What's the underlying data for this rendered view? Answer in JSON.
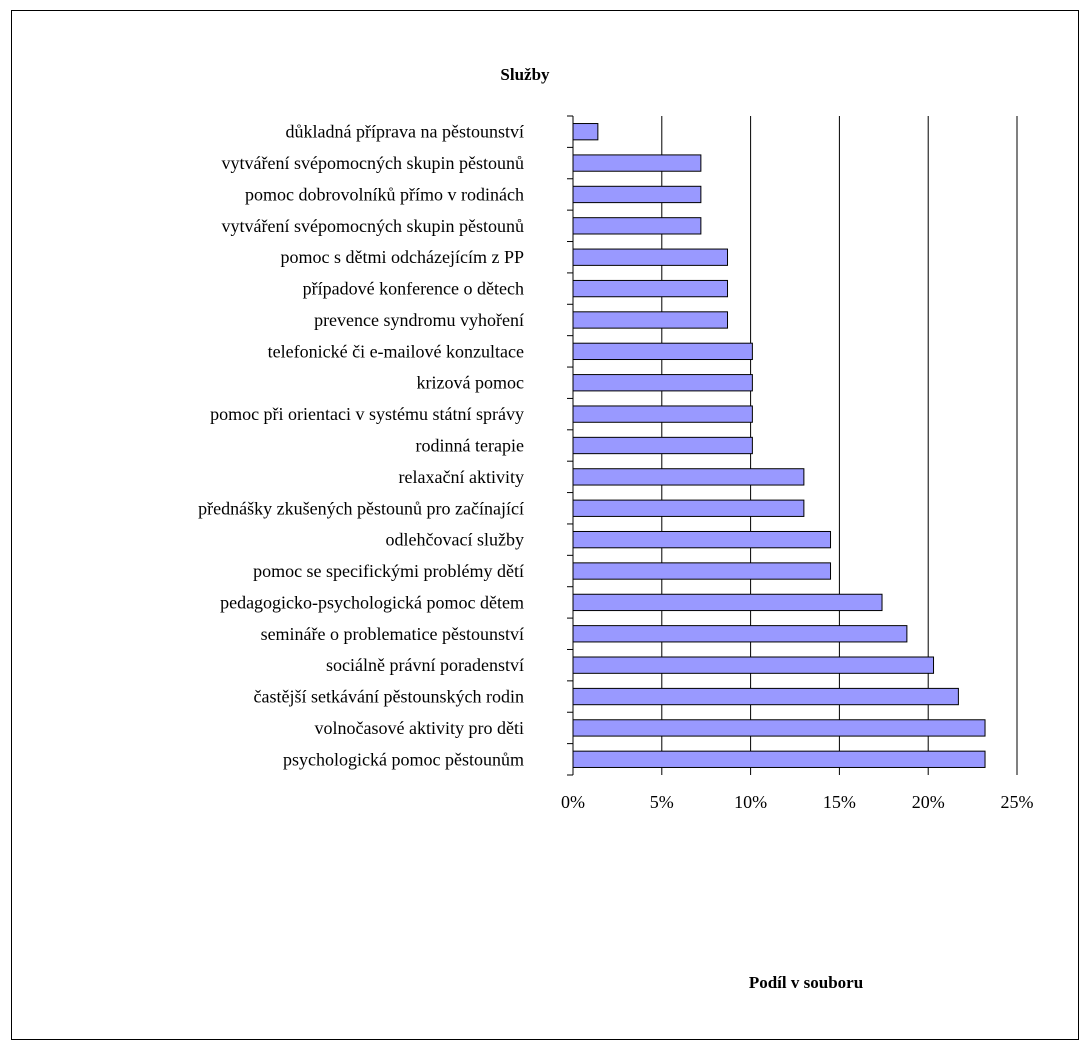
{
  "chart_data": {
    "type": "bar",
    "orientation": "horizontal",
    "title": "Služby",
    "xlabel": "Podíl v souboru",
    "ylabel": "",
    "xlim": [
      0,
      25
    ],
    "x_ticks": [
      "0%",
      "5%",
      "10%",
      "15%",
      "20%",
      "25%"
    ],
    "grid": "vertical",
    "legend": "none",
    "bar_color": "#9999ff",
    "categories": [
      "důkladná příprava na pěstounství",
      "vytváření svépomocných skupin pěstounů",
      "pomoc dobrovolníků přímo v rodinách",
      "vytváření svépomocných skupin pěstounů",
      "pomoc s dětmi odcházejícím z PP",
      "případové konference o dětech",
      "prevence syndromu vyhoření",
      "telefonické či e-mailové konzultace",
      "krizová pomoc",
      "pomoc při orientaci v systému státní správy",
      "rodinná terapie",
      "relaxační aktivity",
      "přednášky zkušených pěstounů pro začínající",
      "odlehčovací služby",
      "pomoc se specifickými problémy dětí",
      "pedagogicko-psychologická pomoc dětem",
      "semináře o problematice pěstounství",
      "sociálně právní poradenství",
      "častější setkávání pěstounských rodin",
      "volnočasové aktivity pro děti",
      "psychologická pomoc pěstounům"
    ],
    "values": [
      1.4,
      7.2,
      7.2,
      7.2,
      8.7,
      8.7,
      8.7,
      10.1,
      10.1,
      10.1,
      10.1,
      13.0,
      13.0,
      14.5,
      14.5,
      17.4,
      18.8,
      20.3,
      21.7,
      23.2,
      23.2
    ]
  }
}
